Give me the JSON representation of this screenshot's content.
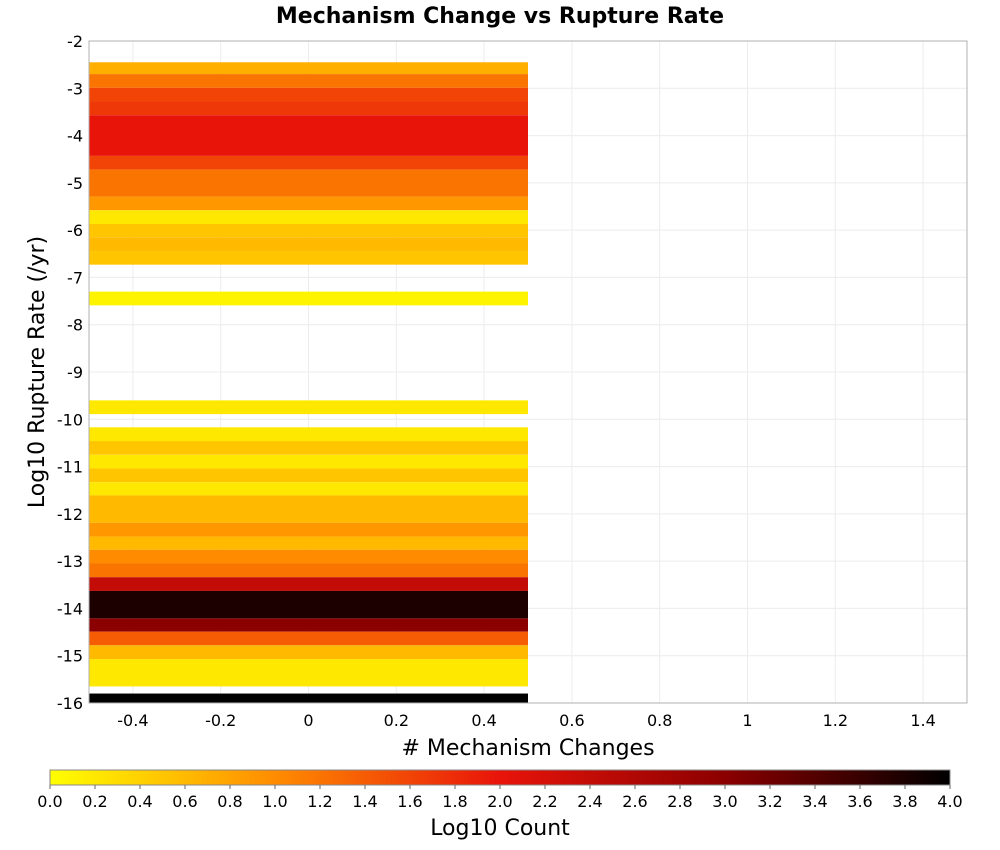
{
  "chart_data": {
    "type": "heatmap",
    "title": "Mechanism Change vs Rupture Rate",
    "xlabel": "# Mechanism Changes",
    "ylabel": "Log10 Rupture Rate (/yr)",
    "xlim": [
      -0.5,
      1.5
    ],
    "ylim": [
      -16,
      -2
    ],
    "x_ticks": [
      "-0.4",
      "-0.2",
      "0",
      "0.2",
      "0.4",
      "0.6",
      "0.8",
      "1",
      "1.2",
      "1.4"
    ],
    "y_ticks": [
      "-2",
      "-3",
      "-4",
      "-5",
      "-6",
      "-7",
      "-8",
      "-9",
      "-10",
      "-11",
      "-12",
      "-13",
      "-14",
      "-15",
      "-16"
    ],
    "grid": true,
    "cell_x_range": [
      -0.5,
      0.5
    ],
    "cells": [
      {
        "y0": -2.7,
        "y1": -2.45,
        "value": 0.7
      },
      {
        "y0": -2.99,
        "y1": -2.7,
        "value": 1.2
      },
      {
        "y0": -3.28,
        "y1": -2.99,
        "value": 1.6
      },
      {
        "y0": -3.57,
        "y1": -3.28,
        "value": 1.7
      },
      {
        "y0": -4.43,
        "y1": -3.57,
        "value": 2.0
      },
      {
        "y0": -4.72,
        "y1": -4.43,
        "value": 1.6
      },
      {
        "y0": -5.29,
        "y1": -4.72,
        "value": 1.2
      },
      {
        "y0": -5.58,
        "y1": -5.29,
        "value": 0.9
      },
      {
        "y0": -5.87,
        "y1": -5.58,
        "value": 0.2
      },
      {
        "y0": -6.15,
        "y1": -5.87,
        "value": 0.5
      },
      {
        "y0": -6.44,
        "y1": -6.15,
        "value": 0.6
      },
      {
        "y0": -6.73,
        "y1": -6.44,
        "value": 0.5
      },
      {
        "y0": -7.59,
        "y1": -7.3,
        "value": 0.1
      },
      {
        "y0": -9.89,
        "y1": -9.6,
        "value": 0.2
      },
      {
        "y0": -10.46,
        "y1": -10.17,
        "value": 0.2
      },
      {
        "y0": -10.75,
        "y1": -10.46,
        "value": 0.5
      },
      {
        "y0": -11.04,
        "y1": -10.75,
        "value": 0.2
      },
      {
        "y0": -11.33,
        "y1": -11.04,
        "value": 0.5
      },
      {
        "y0": -11.61,
        "y1": -11.33,
        "value": 0.2
      },
      {
        "y0": -12.19,
        "y1": -11.61,
        "value": 0.6
      },
      {
        "y0": -12.48,
        "y1": -12.19,
        "value": 0.9
      },
      {
        "y0": -12.76,
        "y1": -12.48,
        "value": 0.6
      },
      {
        "y0": -13.05,
        "y1": -12.76,
        "value": 1.0
      },
      {
        "y0": -13.34,
        "y1": -13.05,
        "value": 1.2
      },
      {
        "y0": -13.63,
        "y1": -13.34,
        "value": 2.4
      },
      {
        "y0": -14.21,
        "y1": -13.63,
        "value": 3.8
      },
      {
        "y0": -14.49,
        "y1": -14.21,
        "value": 3.0
      },
      {
        "y0": -14.78,
        "y1": -14.49,
        "value": 1.4
      },
      {
        "y0": -15.07,
        "y1": -14.78,
        "value": 0.6
      },
      {
        "y0": -15.65,
        "y1": -15.07,
        "value": 0.2
      },
      {
        "y0": -16.0,
        "y1": -15.8,
        "value": 4.0
      }
    ],
    "colorbar": {
      "label": "Log10 Count",
      "range": [
        0.0,
        4.0
      ],
      "ticks": [
        "0.0",
        "0.2",
        "0.4",
        "0.6",
        "0.8",
        "1.0",
        "1.2",
        "1.4",
        "1.6",
        "1.8",
        "2.0",
        "2.2",
        "2.4",
        "2.6",
        "2.8",
        "3.0",
        "3.2",
        "3.4",
        "3.6",
        "3.8",
        "4.0"
      ],
      "colors": [
        "#ffff00",
        "#ff8c00",
        "#e8140a",
        "#8b0000",
        "#000000"
      ]
    }
  }
}
